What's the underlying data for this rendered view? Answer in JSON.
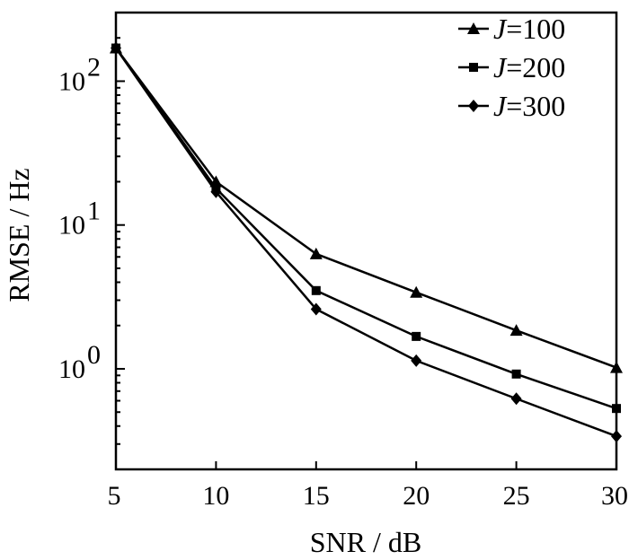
{
  "chart_data": {
    "type": "line",
    "x": [
      5,
      10,
      15,
      20,
      25,
      30
    ],
    "xlim": [
      5,
      30
    ],
    "ylim": [
      0.2,
      300
    ],
    "yscale": "log",
    "xlabel": "SNR / dB",
    "ylabel": "RMSE / Hz",
    "x_ticks": [
      "5",
      "10",
      "15",
      "20",
      "25",
      "30"
    ],
    "y_ticks": [
      {
        "base": "10",
        "exp": "0",
        "value": 1
      },
      {
        "base": "10",
        "exp": "1",
        "value": 10
      },
      {
        "base": "10",
        "exp": "2",
        "value": 100
      }
    ],
    "legend_position": "top-right",
    "series": [
      {
        "name_prefix": "J",
        "name_suffix": "=100",
        "marker": "triangle",
        "values": [
          170,
          20,
          6.3,
          3.4,
          1.85,
          1.02
        ]
      },
      {
        "name_prefix": "J",
        "name_suffix": "=200",
        "marker": "square",
        "values": [
          170,
          18,
          3.5,
          1.68,
          0.92,
          0.53
        ]
      },
      {
        "name_prefix": "J",
        "name_suffix": "=300",
        "marker": "diamond",
        "values": [
          170,
          17,
          2.6,
          1.14,
          0.62,
          0.34
        ]
      }
    ]
  }
}
